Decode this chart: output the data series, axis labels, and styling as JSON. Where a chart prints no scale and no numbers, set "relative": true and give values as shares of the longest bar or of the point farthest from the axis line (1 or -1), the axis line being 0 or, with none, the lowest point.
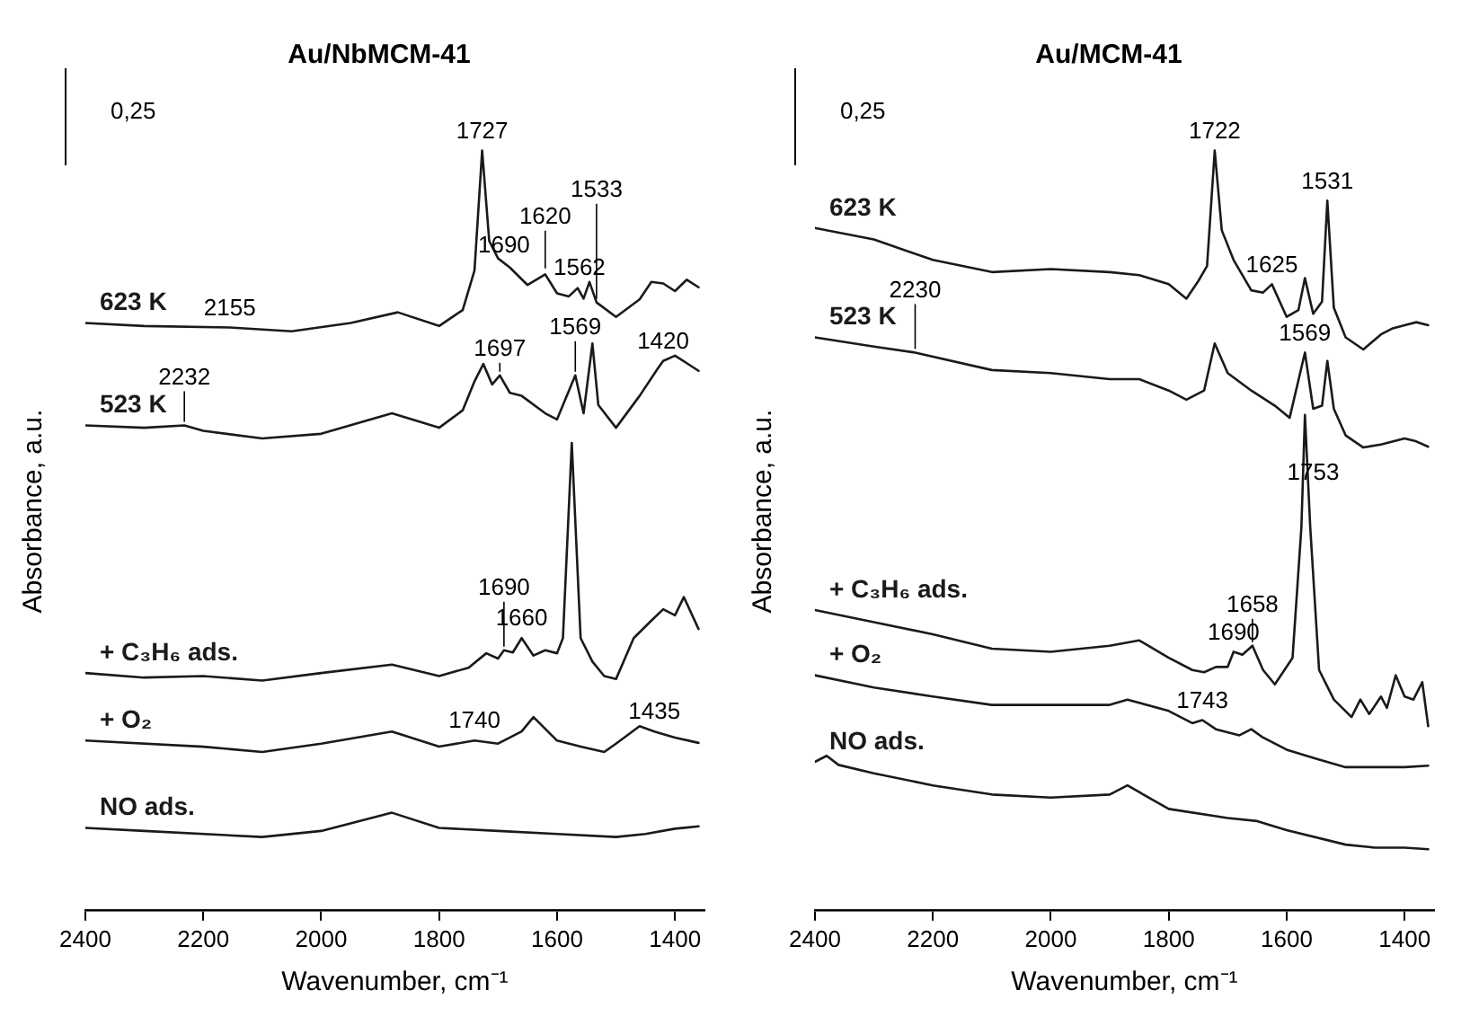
{
  "chart_data": [
    {
      "type": "line",
      "title": "Au/NbMCM-41",
      "xlabel": "Wavenumber, cm⁻¹",
      "ylabel": "Absorbance, a.u.",
      "relative": true,
      "xlim": [
        2400,
        1350
      ],
      "xticks": [
        2400,
        2200,
        2000,
        1800,
        1600,
        1400
      ],
      "legend": false,
      "grid": false,
      "marker": "none",
      "annotations": [
        "0,25",
        {
          "text": "1727",
          "x": 1727,
          "y": 1.0
        },
        {
          "text": "1690",
          "x": 1690,
          "y": 0.85
        },
        {
          "text": "1620",
          "x": 1620,
          "y": 0.84
        },
        {
          "text": "1562",
          "x": 1562,
          "y": 0.82
        },
        {
          "text": "1533",
          "x": 1533,
          "y": 0.8
        },
        {
          "text": "2155",
          "x": 2155,
          "y": 0.767
        },
        {
          "text": "1697",
          "x": 1697,
          "y": 0.704
        },
        {
          "text": "1569",
          "x": 1569,
          "y": 0.704
        },
        {
          "text": "1420",
          "x": 1420,
          "y": 0.723
        },
        {
          "text": "2232",
          "x": 2232,
          "y": 0.638
        },
        {
          "text": "1660",
          "x": 1660,
          "y": 0.358
        },
        {
          "text": "1690",
          "x": 1690,
          "y": 0.342
        },
        {
          "text": "1740",
          "x": 1740,
          "y": 0.223
        },
        {
          "text": "1435",
          "x": 1435,
          "y": 0.235
        }
      ],
      "series": [
        {
          "name": "623 K",
          "color": "#1a1a1a",
          "x": [
            2400,
            2300,
            2155,
            2050,
            1950,
            1870,
            1800,
            1760,
            1740,
            1727,
            1715,
            1700,
            1680,
            1650,
            1620,
            1600,
            1580,
            1565,
            1555,
            1545,
            1533,
            1500,
            1460,
            1440,
            1420,
            1400,
            1380,
            1360
          ],
          "values": [
            0.773,
            0.769,
            0.767,
            0.762,
            0.773,
            0.787,
            0.769,
            0.79,
            0.842,
            1.0,
            0.881,
            0.858,
            0.846,
            0.823,
            0.837,
            0.812,
            0.808,
            0.819,
            0.805,
            0.827,
            0.8,
            0.781,
            0.804,
            0.827,
            0.825,
            0.815,
            0.83,
            0.82
          ]
        },
        {
          "name": "523 K",
          "color": "#1a1a1a",
          "x": [
            2400,
            2300,
            2232,
            2200,
            2100,
            2000,
            1880,
            1800,
            1760,
            1740,
            1725,
            1710,
            1697,
            1680,
            1660,
            1620,
            1600,
            1569,
            1555,
            1540,
            1530,
            1500,
            1460,
            1430,
            1420,
            1400,
            1380,
            1360
          ],
          "values": [
            0.638,
            0.635,
            0.638,
            0.631,
            0.621,
            0.627,
            0.654,
            0.635,
            0.658,
            0.696,
            0.719,
            0.692,
            0.704,
            0.681,
            0.677,
            0.654,
            0.646,
            0.704,
            0.654,
            0.746,
            0.665,
            0.635,
            0.677,
            0.712,
            0.723,
            0.73,
            0.72,
            0.71
          ]
        },
        {
          "name": "+ C₃H₆ ads.",
          "color": "#1a1a1a",
          "x": [
            2400,
            2300,
            2200,
            2100,
            2000,
            1880,
            1800,
            1750,
            1720,
            1700,
            1690,
            1675,
            1660,
            1640,
            1620,
            1600,
            1590,
            1575,
            1560,
            1540,
            1520,
            1500,
            1470,
            1440,
            1420,
            1400,
            1385,
            1360
          ],
          "values": [
            0.312,
            0.306,
            0.308,
            0.302,
            0.312,
            0.323,
            0.308,
            0.319,
            0.338,
            0.331,
            0.342,
            0.339,
            0.358,
            0.335,
            0.342,
            0.338,
            0.358,
            0.615,
            0.358,
            0.327,
            0.308,
            0.304,
            0.358,
            0.381,
            0.396,
            0.388,
            0.412,
            0.37
          ]
        },
        {
          "name": "+ O₂",
          "color": "#1a1a1a",
          "x": [
            2400,
            2200,
            2100,
            2000,
            1880,
            1800,
            1740,
            1700,
            1660,
            1640,
            1600,
            1560,
            1520,
            1500,
            1460,
            1435,
            1400,
            1360
          ],
          "values": [
            0.223,
            0.215,
            0.208,
            0.219,
            0.235,
            0.215,
            0.223,
            0.219,
            0.235,
            0.254,
            0.223,
            0.215,
            0.208,
            0.219,
            0.242,
            0.235,
            0.227,
            0.22
          ]
        },
        {
          "name": "NO ads.",
          "color": "#1a1a1a",
          "x": [
            2400,
            2300,
            2100,
            2000,
            1880,
            1800,
            1700,
            1600,
            1500,
            1450,
            1400,
            1360
          ],
          "values": [
            0.108,
            0.104,
            0.096,
            0.104,
            0.128,
            0.108,
            0.104,
            0.1,
            0.096,
            0.1,
            0.107,
            0.11
          ]
        }
      ]
    },
    {
      "type": "line",
      "title": "Au/MCM-41",
      "xlabel": "Wavenumber, cm⁻¹",
      "ylabel": "Absorbance, a.u.",
      "relative": true,
      "xlim": [
        2400,
        1350
      ],
      "xticks": [
        2400,
        2200,
        2000,
        1800,
        1600,
        1400
      ],
      "legend": false,
      "grid": false,
      "marker": "none",
      "annotations": [
        "0,25",
        {
          "text": "1722",
          "x": 1722,
          "y": 1.0
        },
        {
          "text": "1625",
          "x": 1625,
          "y": 0.824
        },
        {
          "text": "1531",
          "x": 1531,
          "y": 0.934
        },
        {
          "text": "2230",
          "x": 2230,
          "y": 0.734
        },
        {
          "text": "1569",
          "x": 1569,
          "y": 0.734
        },
        {
          "text": "1753",
          "x": 1555,
          "y": 0.55
        },
        {
          "text": "1690",
          "x": 1690,
          "y": 0.34
        },
        {
          "text": "1658",
          "x": 1658,
          "y": 0.348
        },
        {
          "text": "1743",
          "x": 1743,
          "y": 0.25
        }
      ],
      "series": [
        {
          "name": "623 K",
          "color": "#1a1a1a",
          "x": [
            2400,
            2300,
            2200,
            2100,
            2000,
            1900,
            1850,
            1800,
            1770,
            1750,
            1735,
            1722,
            1710,
            1690,
            1660,
            1640,
            1625,
            1600,
            1580,
            1569,
            1555,
            1540,
            1531,
            1520,
            1500,
            1470,
            1440,
            1420,
            1400,
            1380,
            1360
          ],
          "values": [
            0.898,
            0.883,
            0.856,
            0.84,
            0.844,
            0.84,
            0.836,
            0.824,
            0.805,
            0.828,
            0.848,
            1.0,
            0.895,
            0.856,
            0.816,
            0.813,
            0.824,
            0.781,
            0.79,
            0.832,
            0.785,
            0.801,
            0.934,
            0.793,
            0.754,
            0.738,
            0.758,
            0.766,
            0.77,
            0.774,
            0.77
          ]
        },
        {
          "name": "523 K",
          "color": "#1a1a1a",
          "x": [
            2400,
            2300,
            2230,
            2100,
            2000,
            1900,
            1850,
            1800,
            1770,
            1740,
            1722,
            1700,
            1660,
            1620,
            1595,
            1569,
            1555,
            1540,
            1531,
            1520,
            1500,
            1470,
            1440,
            1400,
            1380,
            1360
          ],
          "values": [
            0.754,
            0.742,
            0.734,
            0.711,
            0.707,
            0.699,
            0.699,
            0.684,
            0.672,
            0.684,
            0.746,
            0.707,
            0.684,
            0.664,
            0.648,
            0.734,
            0.66,
            0.664,
            0.723,
            0.66,
            0.625,
            0.609,
            0.613,
            0.621,
            0.617,
            0.61
          ]
        },
        {
          "name": "+ C₃H₆ ads.",
          "color": "#1a1a1a",
          "x": [
            2400,
            2300,
            2200,
            2100,
            2000,
            1900,
            1850,
            1800,
            1760,
            1740,
            1720,
            1700,
            1690,
            1675,
            1658,
            1640,
            1620,
            1590,
            1575,
            1569,
            1560,
            1545,
            1520,
            1490,
            1475,
            1460,
            1440,
            1430,
            1415,
            1400,
            1385,
            1370,
            1360
          ],
          "values": [
            0.395,
            0.379,
            0.363,
            0.344,
            0.34,
            0.348,
            0.355,
            0.332,
            0.316,
            0.313,
            0.32,
            0.32,
            0.34,
            0.336,
            0.348,
            0.316,
            0.297,
            0.332,
            0.504,
            0.652,
            0.504,
            0.316,
            0.277,
            0.254,
            0.277,
            0.258,
            0.281,
            0.266,
            0.309,
            0.281,
            0.277,
            0.3,
            0.242
          ]
        },
        {
          "name": "+ O₂",
          "color": "#1a1a1a",
          "x": [
            2400,
            2300,
            2200,
            2100,
            2000,
            1900,
            1870,
            1800,
            1760,
            1743,
            1720,
            1680,
            1660,
            1640,
            1600,
            1550,
            1500,
            1450,
            1400,
            1360
          ],
          "values": [
            0.309,
            0.293,
            0.281,
            0.27,
            0.27,
            0.27,
            0.277,
            0.262,
            0.246,
            0.25,
            0.238,
            0.23,
            0.238,
            0.227,
            0.211,
            0.199,
            0.188,
            0.188,
            0.188,
            0.19
          ]
        },
        {
          "name": "NO ads.",
          "color": "#1a1a1a",
          "x": [
            2400,
            2380,
            2360,
            2300,
            2200,
            2100,
            2000,
            1900,
            1870,
            1800,
            1700,
            1650,
            1600,
            1500,
            1450,
            1400,
            1360
          ],
          "values": [
            0.195,
            0.203,
            0.191,
            0.18,
            0.164,
            0.152,
            0.148,
            0.152,
            0.164,
            0.133,
            0.121,
            0.117,
            0.105,
            0.086,
            0.082,
            0.082,
            0.08
          ]
        }
      ]
    }
  ]
}
